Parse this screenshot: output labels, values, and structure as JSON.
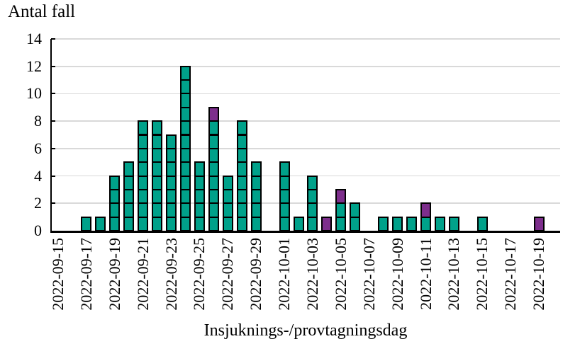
{
  "chart_data": {
    "type": "bar",
    "stacked": true,
    "bar_style": "unit-segmented-blocks",
    "title": "Antal fall",
    "xlabel": "Insjuknings-/provtagningsdag",
    "ylabel": "Antal fall",
    "ylim": [
      0,
      14
    ],
    "yticks": [
      0,
      2,
      4,
      6,
      8,
      10,
      12,
      14
    ],
    "grid": true,
    "legend_position": "none",
    "categories": [
      "2022-09-15",
      "2022-09-16",
      "2022-09-17",
      "2022-09-18",
      "2022-09-19",
      "2022-09-20",
      "2022-09-21",
      "2022-09-22",
      "2022-09-23",
      "2022-09-24",
      "2022-09-25",
      "2022-09-26",
      "2022-09-27",
      "2022-09-28",
      "2022-09-29",
      "2022-09-30",
      "2022-10-01",
      "2022-10-02",
      "2022-10-03",
      "2022-10-04",
      "2022-10-05",
      "2022-10-06",
      "2022-10-07",
      "2022-10-08",
      "2022-10-09",
      "2022-10-10",
      "2022-10-11",
      "2022-10-12",
      "2022-10-13",
      "2022-10-14",
      "2022-10-15",
      "2022-10-16",
      "2022-10-17",
      "2022-10-18",
      "2022-10-19"
    ],
    "xtick_labels": [
      "2022-09-15",
      "2022-09-17",
      "2022-09-19",
      "2022-09-21",
      "2022-09-23",
      "2022-09-25",
      "2022-09-27",
      "2022-09-29",
      "2022-10-01",
      "2022-10-03",
      "2022-10-05",
      "2022-10-07",
      "2022-10-09",
      "2022-10-11",
      "2022-10-13",
      "2022-10-15",
      "2022-10-17",
      "2022-10-19"
    ],
    "series": [
      {
        "name": "series-teal",
        "color": "#00a18a",
        "values": [
          0,
          0,
          1,
          1,
          4,
          5,
          8,
          8,
          7,
          12,
          5,
          8,
          4,
          8,
          5,
          0,
          5,
          1,
          4,
          0,
          2,
          2,
          0,
          1,
          1,
          1,
          1,
          1,
          1,
          0,
          1,
          0,
          0,
          0,
          0
        ]
      },
      {
        "name": "series-purple",
        "color": "#7d2e8c",
        "values": [
          0,
          0,
          0,
          0,
          0,
          0,
          0,
          0,
          0,
          0,
          0,
          1,
          0,
          0,
          0,
          0,
          0,
          0,
          0,
          1,
          1,
          0,
          0,
          0,
          0,
          0,
          1,
          0,
          0,
          0,
          0,
          0,
          0,
          0,
          1
        ]
      }
    ],
    "colors": {
      "gridline": "#d9d9d9",
      "axis": "#000000",
      "cell_border": "#000000",
      "background": "#ffffff"
    }
  }
}
